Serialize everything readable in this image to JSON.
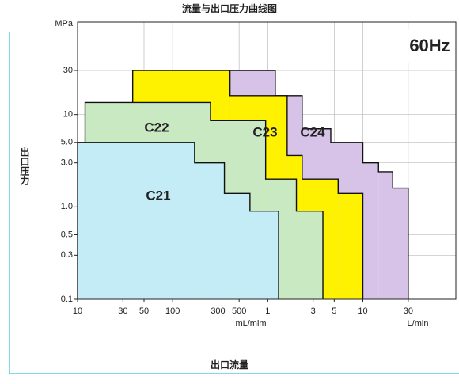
{
  "chart_data": {
    "type": "step-area",
    "title": "流量与出口压力曲线图",
    "x_label": "出口流量",
    "y_label": "出口压力",
    "y_unit": "MPa",
    "x_unit_labels": [
      "mL/mim",
      "L/min"
    ],
    "annotation": "60Hz",
    "log_x": true,
    "log_y": true,
    "grid": true,
    "xlim": [
      10,
      95000
    ],
    "ylim": [
      0.1,
      100
    ],
    "xticks": [
      10,
      30,
      50,
      100,
      300,
      500,
      {
        "value": 1000,
        "label": "1"
      },
      {
        "value": 3000,
        "label": "3"
      },
      {
        "value": 5000,
        "label": "5"
      },
      {
        "value": 10000,
        "label": "10"
      },
      {
        "value": 30000,
        "label": "30"
      }
    ],
    "yticks": [
      0.1,
      0.3,
      0.5,
      {
        "value": 1,
        "label": "1.0"
      },
      {
        "value": 3,
        "label": "3.0"
      },
      {
        "value": 5,
        "label": "5.0"
      },
      10,
      30
    ],
    "series": [
      {
        "name": "C21",
        "color": "#c4ecf6",
        "bins": [
          10,
          170,
          350,
          650,
          1300
        ],
        "values": [
          5,
          3,
          1.4,
          0.9
        ]
      },
      {
        "name": "C22",
        "color": "#c9e9c3",
        "bins": [
          12,
          250,
          950,
          2000,
          3800
        ],
        "values": [
          13.5,
          8.6,
          2.0,
          0.9
        ]
      },
      {
        "name": "C23",
        "color": "#fff200",
        "bins": [
          38,
          400,
          1600,
          2300,
          5500,
          10000
        ],
        "values": [
          30,
          16,
          3.6,
          2.0,
          1.4
        ]
      },
      {
        "name": "C24",
        "color": "#d8c3e8",
        "bins": [
          400,
          1200,
          2300,
          4600,
          10000,
          14600,
          20600,
          30000
        ],
        "values": [
          30,
          16,
          7,
          5,
          3,
          2.4,
          1.6
        ]
      }
    ]
  }
}
